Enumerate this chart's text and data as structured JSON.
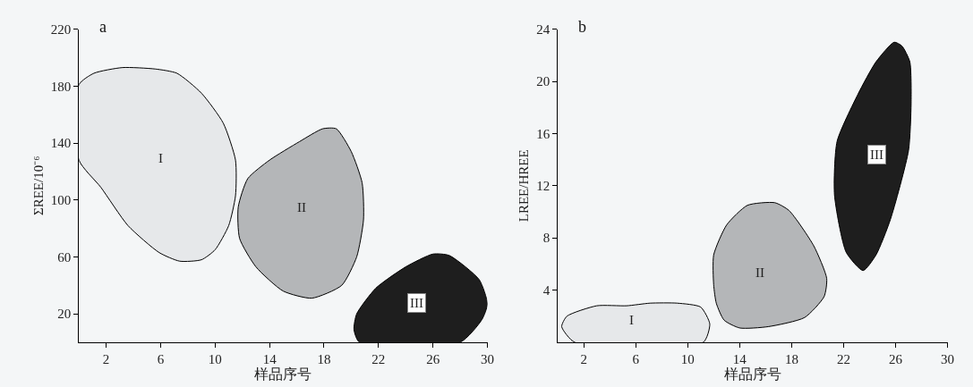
{
  "chart_data": [
    {
      "type": "area",
      "title": "a",
      "xlabel": "样品序号",
      "ylabel": "ΣREE/10⁻⁶",
      "xlim": [
        0,
        30
      ],
      "ylim": [
        0,
        220
      ],
      "xticks": [
        2,
        6,
        10,
        14,
        18,
        22,
        26,
        30
      ],
      "yticks": [
        20,
        60,
        100,
        140,
        180,
        220
      ],
      "series": [
        {
          "name": "I",
          "color": "#e6e8ea",
          "x": [
            0,
            1.1,
            3.2,
            5.6,
            7.2,
            9.0,
            10.6,
            11.5,
            11.5,
            11.0,
            10.0,
            9.0,
            7.4,
            5.9,
            3.6,
            1.6,
            0,
            0
          ],
          "values": [
            181,
            189,
            193,
            192,
            189,
            175,
            154,
            128,
            103,
            82,
            65,
            58,
            57,
            63,
            82,
            109,
            128,
            181
          ]
        },
        {
          "name": "II",
          "color": "#b4b6b8",
          "x": [
            12.4,
            14.0,
            16.2,
            17.9,
            18.9,
            20.0,
            20.8,
            20.9,
            20.4,
            19.3,
            17.1,
            15.0,
            13.0,
            11.8,
            11.7,
            12.4
          ],
          "values": [
            115,
            128,
            141,
            150,
            150,
            134,
            112,
            86,
            60,
            40,
            31,
            36,
            53,
            73,
            95,
            115
          ]
        },
        {
          "name": "III",
          "color": "#1e1e1e",
          "x": [
            20.6,
            20.2,
            20.4,
            21.8,
            24.0,
            26.0,
            27.2,
            29.4,
            30.0,
            29.6,
            28.0,
            20.6
          ],
          "values": [
            0,
            9,
            20,
            38,
            53,
            62,
            61,
            44,
            27,
            16,
            0,
            0
          ]
        }
      ]
    },
    {
      "type": "area",
      "title": "b",
      "xlabel": "样品序号",
      "ylabel": "LREE/HREE",
      "xlim": [
        0,
        30
      ],
      "ylim": [
        0,
        24
      ],
      "xticks": [
        2,
        6,
        10,
        14,
        18,
        22,
        26,
        30
      ],
      "yticks": [
        4,
        8,
        12,
        16,
        20,
        24
      ],
      "series": [
        {
          "name": "I",
          "color": "#e6e8ea",
          "x": [
            1.3,
            0.3,
            0.7,
            3.0,
            5.3,
            7.1,
            9.2,
            11.0,
            11.7,
            11.2,
            1.3
          ],
          "values": [
            0,
            1.2,
            2.0,
            2.8,
            2.8,
            3.0,
            3.0,
            2.7,
            1.4,
            0,
            0
          ]
        },
        {
          "name": "II",
          "color": "#b4b6b8",
          "x": [
            12.0,
            12.0,
            13.0,
            14.6,
            16.7,
            17.8,
            19.7,
            20.7,
            20.5,
            19.0,
            16.2,
            14.0,
            12.8,
            12.2,
            12.0
          ],
          "values": [
            4.4,
            6.7,
            9.0,
            10.5,
            10.7,
            10.1,
            7.4,
            4.9,
            3.5,
            1.9,
            1.2,
            1.1,
            1.7,
            3.0,
            4.4
          ]
        },
        {
          "name": "III",
          "color": "#1e1e1e",
          "x": [
            23.5,
            22.2,
            21.3,
            21.5,
            23.1,
            24.5,
            25.9,
            26.5,
            27.1,
            27.2,
            27.0,
            25.6,
            24.5,
            23.5
          ],
          "values": [
            5.5,
            6.9,
            11.3,
            15.4,
            19.0,
            21.5,
            23.0,
            22.7,
            21.5,
            18.3,
            14.7,
            9.4,
            6.7,
            5.5
          ]
        }
      ]
    }
  ]
}
